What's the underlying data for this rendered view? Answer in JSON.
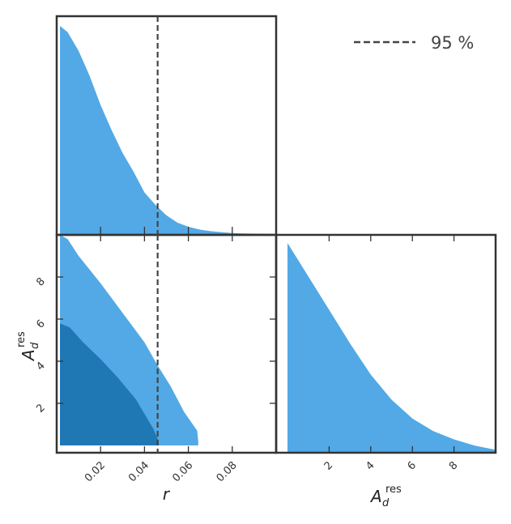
{
  "chart_data": [
    {
      "type": "area",
      "panel": "r-marginal",
      "xlim": [
        0.0,
        0.1
      ],
      "color": "#52a9e6",
      "x": [
        0.0015,
        0.005,
        0.01,
        0.015,
        0.02,
        0.025,
        0.03,
        0.035,
        0.04,
        0.045,
        0.05,
        0.055,
        0.06,
        0.065,
        0.07,
        0.075,
        0.08,
        0.085,
        0.09,
        0.095,
        0.1
      ],
      "density": [
        1.0,
        0.97,
        0.88,
        0.76,
        0.62,
        0.5,
        0.39,
        0.3,
        0.2,
        0.14,
        0.09,
        0.055,
        0.035,
        0.022,
        0.014,
        0.009,
        0.005,
        0.003,
        0.002,
        0.001,
        0.0
      ]
    },
    {
      "type": "contour",
      "panel": "r-vs-Ad",
      "xlim": [
        0.0,
        0.1
      ],
      "ylim": [
        0.0,
        10.0
      ],
      "yticks": [
        "2",
        "4",
        "6",
        "8"
      ],
      "regions": [
        {
          "level": "outer",
          "color": "#52a9e6",
          "upper_edge": [
            [
              0.0015,
              10.0
            ],
            [
              0.005,
              9.8
            ],
            [
              0.01,
              9.0
            ],
            [
              0.02,
              7.7
            ],
            [
              0.03,
              6.3
            ],
            [
              0.04,
              4.9
            ],
            [
              0.046,
              3.8
            ],
            [
              0.052,
              2.8
            ],
            [
              0.058,
              1.6
            ],
            [
              0.064,
              0.7
            ],
            [
              0.0645,
              0.2
            ]
          ]
        },
        {
          "level": "inner",
          "color": "#1f77b4",
          "upper_edge": [
            [
              0.0015,
              5.8
            ],
            [
              0.006,
              5.6
            ],
            [
              0.012,
              4.9
            ],
            [
              0.02,
              4.1
            ],
            [
              0.028,
              3.2
            ],
            [
              0.036,
              2.2
            ],
            [
              0.04,
              1.5
            ],
            [
              0.044,
              0.8
            ],
            [
              0.0465,
              0.2
            ]
          ]
        }
      ]
    },
    {
      "type": "area",
      "panel": "Ad-marginal",
      "xlim": [
        0.0,
        10.0
      ],
      "color": "#52a9e6",
      "x": [
        0.0,
        0.5,
        1.0,
        2.0,
        3.0,
        4.0,
        5.0,
        6.0,
        7.0,
        8.0,
        9.0,
        10.0
      ],
      "density": [
        1.0,
        0.92,
        0.84,
        0.68,
        0.52,
        0.37,
        0.25,
        0.16,
        0.1,
        0.06,
        0.03,
        0.01
      ]
    }
  ],
  "r_axis": {
    "ticks": [
      0.02,
      0.04,
      0.06,
      0.08
    ],
    "tick_labels": [
      "0.02",
      "0.04",
      "0.06",
      "0.08"
    ],
    "label": "r"
  },
  "ad_axis": {
    "ticks": [
      2,
      4,
      6,
      8
    ],
    "tick_labels": [
      "2",
      "4",
      "6",
      "8"
    ],
    "label_base": "A",
    "label_sub": "d",
    "label_sup": "res"
  },
  "limit_line": {
    "value": 0.046,
    "legend_label": "95 %",
    "color": "#444444"
  }
}
